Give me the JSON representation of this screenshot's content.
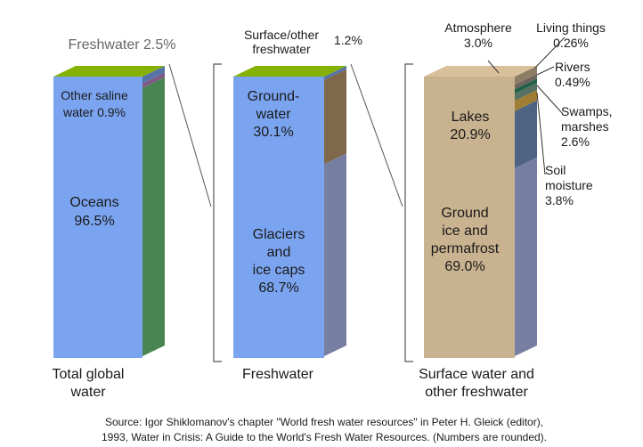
{
  "chart_data": {
    "type": "stacked-bar",
    "units": "percent",
    "bars": [
      {
        "id": "total",
        "label": "Total global water",
        "label_lines": [
          "Total global",
          "water"
        ],
        "segments": [
          {
            "name": "Oceans",
            "value": 96.5,
            "color": "#68bd76",
            "label_lines": [
              "Oceans",
              "96.5%"
            ]
          },
          {
            "name": "Other saline water",
            "value": 0.9,
            "color": "#b77fbf",
            "label_lines": [
              "Other saline",
              "water 0.9%"
            ]
          },
          {
            "name": "Freshwater",
            "value": 2.5,
            "color": "#7ba4f0",
            "label_lines": [
              "Freshwater 2.5%"
            ]
          }
        ]
      },
      {
        "id": "fresh",
        "label": "Freshwater",
        "label_lines": [
          "Freshwater"
        ],
        "segments": [
          {
            "name": "Glaciers and ice caps",
            "value": 68.7,
            "color": "#a9b6e6",
            "label_lines": [
              "Glaciers",
              "and",
              "ice caps",
              "68.7%"
            ]
          },
          {
            "name": "Ground-water",
            "value": 30.1,
            "color": "#b79569",
            "label_lines": [
              "Ground-",
              "water",
              "30.1%"
            ]
          },
          {
            "name": "Surface/other freshwater",
            "value": 1.2,
            "color": "#7ba4f0",
            "label_lines": [
              "Surface/other",
              "freshwater"
            ],
            "value_label": "1.2%"
          }
        ]
      },
      {
        "id": "surface",
        "label": "Surface water and other freshwater",
        "label_lines": [
          "Surface water and",
          "other freshwater"
        ],
        "segments": [
          {
            "name": "Ground ice and permafrost",
            "value": 69.0,
            "color": "#a9b6e6",
            "label_lines": [
              "Ground",
              "ice and",
              "permafrost",
              "69.0%"
            ]
          },
          {
            "name": "Lakes",
            "value": 20.9,
            "color": "#6e8db8",
            "label_lines": [
              "Lakes",
              "20.9%"
            ]
          },
          {
            "name": "Soil moisture",
            "value": 3.8,
            "color": "#e3b24a",
            "label_lines": [
              "Soil",
              "moisture",
              "3.8%"
            ]
          },
          {
            "name": "Swamps, marshes",
            "value": 2.6,
            "color": "#7ba28a",
            "label_lines": [
              "Swamps,",
              "marshes",
              "2.6%"
            ]
          },
          {
            "name": "Rivers",
            "value": 0.49,
            "color": "#2f8a6a",
            "label_lines": [
              "Rivers",
              "0.49%"
            ]
          },
          {
            "name": "Living things",
            "value": 0.26,
            "color": "#9b8f85",
            "label_lines": [
              "Living things",
              "0.26%"
            ]
          },
          {
            "name": "Atmosphere",
            "value": 3.0,
            "color": "#c9b28f",
            "label_lines": [
              "Atmosphere",
              "3.0%"
            ]
          }
        ]
      }
    ],
    "source_lines": [
      "Source: Igor Shiklomanov's chapter \"World fresh water resources\" in Peter H. Gleick (editor),",
      "1993, Water in Crisis: A Guide to the World's Fresh Water Resources. (Numbers are rounded)."
    ]
  }
}
